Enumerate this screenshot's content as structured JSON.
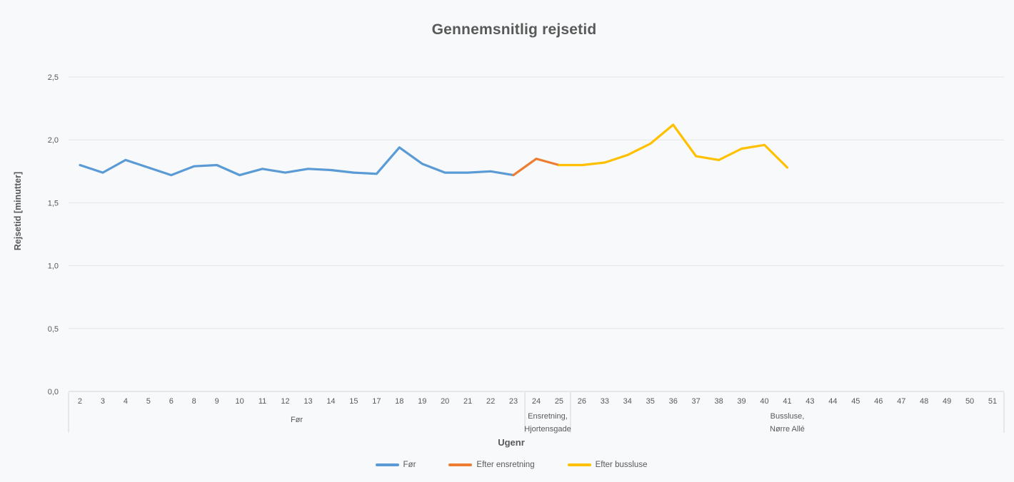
{
  "chart_data": {
    "type": "line",
    "title": "Gennemsnitlig rejsetid",
    "xlabel": "Ugenr",
    "ylabel": "Rejsetid [minutter]",
    "ylim": [
      0,
      2.5
    ],
    "grid": true,
    "legend_position": "bottom",
    "decimal_separator": ",",
    "y_ticks": [
      {
        "value": 0.0,
        "label": "0,0"
      },
      {
        "value": 0.5,
        "label": "0,5"
      },
      {
        "value": 1.0,
        "label": "1,0"
      },
      {
        "value": 1.5,
        "label": "1,5"
      },
      {
        "value": 2.0,
        "label": "2,0"
      },
      {
        "value": 2.5,
        "label": "2,5"
      }
    ],
    "categories": [
      "2",
      "3",
      "4",
      "5",
      "6",
      "8",
      "9",
      "10",
      "11",
      "12",
      "13",
      "14",
      "15",
      "17",
      "18",
      "19",
      "20",
      "21",
      "22",
      "23",
      "24",
      "25",
      "26",
      "33",
      "34",
      "35",
      "36",
      "37",
      "38",
      "39",
      "40",
      "41",
      "43",
      "44",
      "45",
      "46",
      "47",
      "48",
      "49",
      "50",
      "51"
    ],
    "category_groups": [
      {
        "label_lines": [
          "Før"
        ],
        "start": 0,
        "end": 19
      },
      {
        "label_lines": [
          "Ensretning,",
          "Hjortensgade"
        ],
        "start": 20,
        "end": 21
      },
      {
        "label_lines": [
          "Bussluse,",
          "Nørre Allé"
        ],
        "start": 22,
        "end": 40
      }
    ],
    "series": [
      {
        "name": "Før",
        "color": "#5B9BD5",
        "values": [
          1.8,
          1.74,
          1.84,
          1.78,
          1.72,
          1.79,
          1.8,
          1.72,
          1.77,
          1.74,
          1.77,
          1.76,
          1.74,
          1.73,
          1.94,
          1.81,
          1.74,
          1.74,
          1.75,
          1.72,
          null,
          null,
          null,
          null,
          null,
          null,
          null,
          null,
          null,
          null,
          null,
          null,
          null,
          null,
          null,
          null,
          null,
          null,
          null,
          null,
          null
        ]
      },
      {
        "name": "Efter ensretning",
        "color": "#ED7D31",
        "values": [
          null,
          null,
          null,
          null,
          null,
          null,
          null,
          null,
          null,
          null,
          null,
          null,
          null,
          null,
          null,
          null,
          null,
          null,
          null,
          1.72,
          1.85,
          1.8,
          null,
          null,
          null,
          null,
          null,
          null,
          null,
          null,
          null,
          null,
          null,
          null,
          null,
          null,
          null,
          null,
          null,
          null,
          null
        ]
      },
      {
        "name": "Efter bussluse",
        "color": "#FFC000",
        "values": [
          null,
          null,
          null,
          null,
          null,
          null,
          null,
          null,
          null,
          null,
          null,
          null,
          null,
          null,
          null,
          null,
          null,
          null,
          null,
          null,
          null,
          1.8,
          1.8,
          1.82,
          1.88,
          1.97,
          2.12,
          1.87,
          1.84,
          1.93,
          1.96,
          1.78,
          null,
          null,
          null,
          null,
          null,
          null,
          null,
          null,
          null
        ]
      }
    ],
    "colors": {
      "background": "#f7f9fa",
      "gridline": "#e3e6e8",
      "axis_line": "#d3d6d9",
      "text": "#595959"
    }
  }
}
